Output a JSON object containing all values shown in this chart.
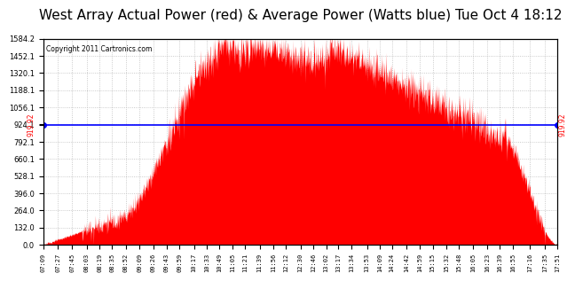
{
  "title": "West Array Actual Power (red) & Average Power (Watts blue) Tue Oct 4 18:12",
  "copyright": "Copyright 2011 Cartronics.com",
  "avg_power": 919.92,
  "ymax": 1584.2,
  "ymin": 0.0,
  "ytick_vals": [
    0.0,
    132.0,
    264.0,
    396.0,
    528.1,
    660.1,
    792.1,
    924.1,
    1056.1,
    1188.1,
    1320.1,
    1452.1,
    1584.2
  ],
  "background_color": "#ffffff",
  "fill_color": "#ff0000",
  "line_color": "#0000ff",
  "grid_color": "#bbbbbb",
  "title_fontsize": 11,
  "xtick_labels": [
    "07:09",
    "07:27",
    "07:45",
    "08:03",
    "08:19",
    "08:35",
    "08:52",
    "09:09",
    "09:26",
    "09:43",
    "09:59",
    "10:17",
    "10:33",
    "10:49",
    "11:05",
    "11:21",
    "11:39",
    "11:56",
    "12:12",
    "12:30",
    "12:46",
    "13:02",
    "13:17",
    "13:34",
    "13:53",
    "14:09",
    "14:24",
    "14:42",
    "14:59",
    "15:15",
    "15:32",
    "15:48",
    "16:05",
    "16:23",
    "16:39",
    "16:55",
    "17:16",
    "17:35",
    "17:51"
  ]
}
